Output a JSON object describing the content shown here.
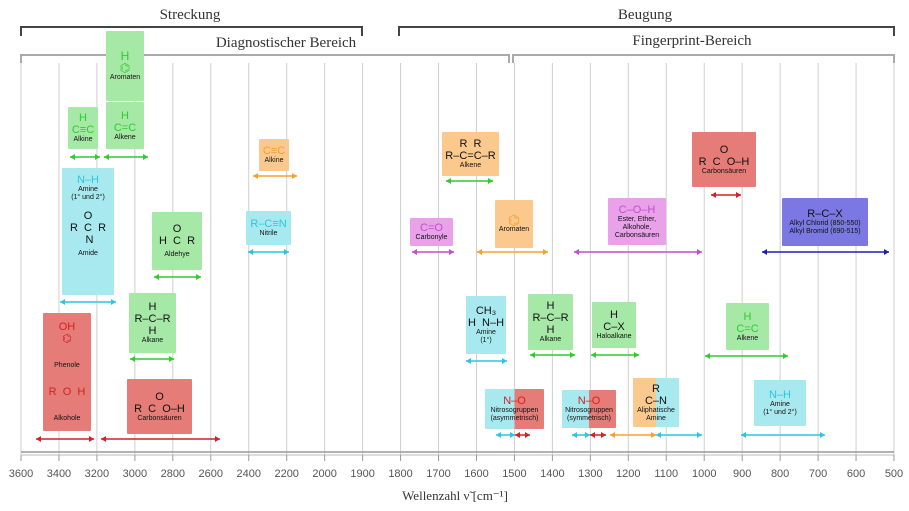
{
  "header": {
    "streckung": "Streckung",
    "beugung": "Beugung",
    "diagnostic": "Diagnostischer Bereich",
    "fingerprint": "Fingerprint-Bereich"
  },
  "axis": {
    "label": "Wellenzahl ν̃ [cm⁻¹]",
    "ticks": [
      "3600",
      "3400",
      "3200",
      "3000",
      "2800",
      "2600",
      "2400",
      "2200",
      "2000",
      "1900",
      "1800",
      "1700",
      "1600",
      "1500",
      "1400",
      "1300",
      "1200",
      "1100",
      "1000",
      "900",
      "800",
      "700",
      "600",
      "500"
    ]
  },
  "colors": {
    "green": "#2ecc2e",
    "cyan": "#2cc6dd",
    "red": "#d22222",
    "orange": "#f5a030",
    "magenta": "#c04fc8",
    "blue": "#1f1fb0"
  },
  "groups": {
    "aromaten": {
      "mol": "H\n⌬",
      "cap": "Aromaten"
    },
    "alkine_ch": {
      "mol": "H\nC≡C",
      "cap": "Alkine"
    },
    "alkene_ch": {
      "mol": "H\nC=C",
      "cap": "Alkene"
    },
    "amine": {
      "mol": "N–H",
      "cap": "Amine\n(1° und 2°)"
    },
    "amide": {
      "mol": "O\nR  C  R\n N",
      "cap": "Amide"
    },
    "aldehyde": {
      "mol": "O\nH  C  R",
      "cap": "Aldehye"
    },
    "alkine_cc": {
      "mol": "C≡C",
      "cap": "Alkine"
    },
    "nitrile": {
      "mol": "R–C≡N",
      "cap": "Nitrile"
    },
    "phenole": {
      "mol": "OH\n⌬",
      "cap": "Phenole"
    },
    "alkohole": {
      "mol": "R  O  H",
      "cap": "Alkohole"
    },
    "alkane_ch": {
      "mol": "H\nR–C–R\nH",
      "cap": "Alkane"
    },
    "carbonsaeuren_oh": {
      "mol": "O\nR  C  O–H",
      "cap": "Carbonsäuren"
    },
    "alkene_cc": {
      "mol": "R  R\nR–C=C–R",
      "cap": "Alkene"
    },
    "carbonyle": {
      "mol": "C=O",
      "cap": "Carbonyle"
    },
    "aromaten2": {
      "mol": "⌬",
      "cap": "Aromaten"
    },
    "ester": {
      "mol": "C–O–H",
      "cap": "Ester, Ether,\nAlkohole,\nCarbonsäuren"
    },
    "carbonsaeuren_co": {
      "mol": "O\nR  C  O–H",
      "cap": "Carbonsäuren"
    },
    "alkylhalide": {
      "mol": "R–C–X",
      "cap": "Alkyl Chlorid (850-550)\nAlkyl Bromid (690-515)"
    },
    "amine1": {
      "mol": "CH₃\nH  N–H",
      "cap": "Amine\n(1°)"
    },
    "alkane_bend": {
      "mol": "H\nR–C–R\nH",
      "cap": "Alkane"
    },
    "haloalkane": {
      "mol": "H\nC–X",
      "cap": "Haloalkane"
    },
    "alkene_bend": {
      "mol": "H\nC=C",
      "cap": "Alkene"
    },
    "nitro_asym": {
      "mol": "N–O",
      "cap": "Nitrosogruppen\n(asymmetrisch)"
    },
    "nitro_sym": {
      "mol": "N–O",
      "cap": "Nitrosogruppen\n(symmetrisch)"
    },
    "aliph_amine": {
      "mol": "R\nC–N",
      "cap": "Aliphatische\nAmine"
    },
    "amine_bend": {
      "mol": "N–H",
      "cap": "Amine\n(1° und 2°)"
    }
  }
}
